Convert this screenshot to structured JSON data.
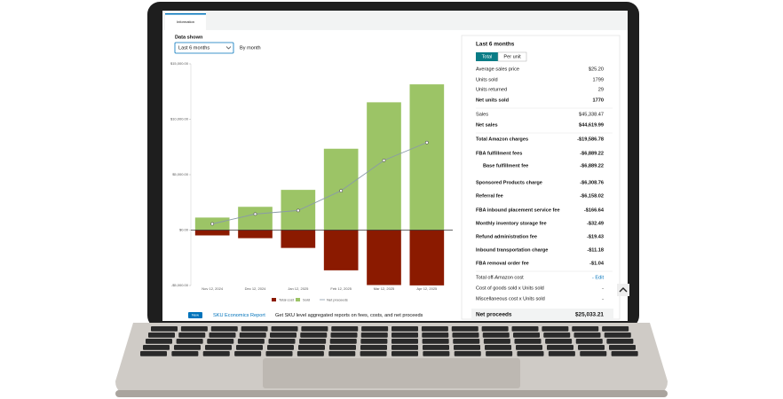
{
  "tabs": [
    "Information"
  ],
  "controls": {
    "label": "Data shown",
    "select": "Last 6 months",
    "option": "By month"
  },
  "chart_data": {
    "type": "bar",
    "categories": [
      "Nov 12, 2024",
      "Dec 12, 2024",
      "Jan 12, 2025",
      "Feb 12, 2025",
      "Mar 12, 2025",
      "Apr 12, 2025"
    ],
    "series": [
      {
        "name": "Total cost",
        "color": "#8b1a00",
        "values": [
          -480,
          -730,
          -1610,
          -3630,
          -4960,
          -4990
        ]
      },
      {
        "name": "Sold",
        "color": "#9cc466",
        "values": [
          1130,
          2100,
          3630,
          7340,
          11530,
          13150
        ]
      },
      {
        "name": "Net proceeds",
        "color": "#8a9aa8",
        "type": "line",
        "values": [
          560,
          1450,
          1770,
          3550,
          6290,
          7900
        ]
      }
    ],
    "ylim": [
      -5000,
      15000
    ],
    "yticks": [
      {
        "value": -5000,
        "label": "-$5,000.00"
      },
      {
        "value": 0,
        "label": "$0.00"
      },
      {
        "value": 5000,
        "label": "$5,000.00"
      },
      {
        "value": 10000,
        "label": "$10,000.00"
      },
      {
        "value": 15000,
        "label": "$15,000.00"
      }
    ]
  },
  "summary": {
    "title": "Last 6 months",
    "toggle": [
      "Total",
      "Per unit"
    ],
    "rows": [
      [
        "Average sales price",
        "$25.20"
      ],
      [
        "Units sold",
        "1799"
      ],
      [
        "Units returned",
        "29"
      ],
      [
        "Net units sold",
        "1770"
      ],
      [
        "Sales",
        "$45,338.47"
      ],
      [
        "Net sales",
        "$44,619.99"
      ],
      [
        "Total Amazon charges",
        "-$19,586.78"
      ],
      [
        "FBA fulfillment fees",
        "-$6,889.22"
      ],
      [
        "Base fulfillment fee",
        "-$6,889.22"
      ],
      [
        "Sponsored Products charge",
        "-$6,308.76"
      ],
      [
        "Referral fee",
        "-$6,158.02"
      ],
      [
        "FBA inbound placement service fee",
        "-$166.64"
      ],
      [
        "Monthly inventory storage fee",
        "-$32.49"
      ],
      [
        "Refund administration fee",
        "-$19.43"
      ],
      [
        "Inbound transportation charge",
        "-$11.18"
      ],
      [
        "FBA removal order fee",
        "-$1.04"
      ],
      [
        "Total off-Amazon cost",
        "- Edit"
      ],
      [
        "Cost of goods sold x Units sold",
        "-"
      ],
      [
        "Miscellaneous cost x Units sold",
        "-"
      ]
    ],
    "net": [
      "Net proceeds",
      "$25,033.21"
    ]
  },
  "footer": {
    "badge": "New",
    "link": "SKU Economics Report",
    "text": "Get SKU level aggregated reports on fees, costs, and net proceeds"
  }
}
